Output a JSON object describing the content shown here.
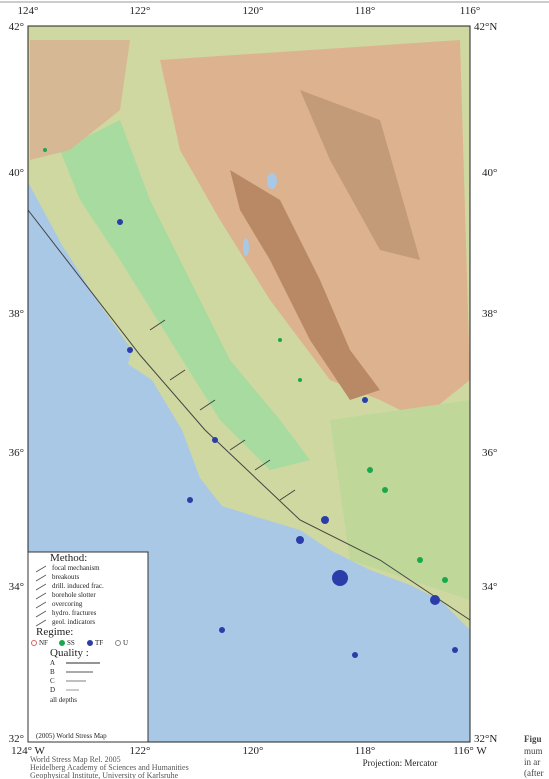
{
  "map": {
    "top_labels": [
      "124°",
      "122°",
      "120°",
      "118°",
      "116°"
    ],
    "left_labels": [
      "42°",
      "40°",
      "38°",
      "36°",
      "34°",
      "32°"
    ],
    "right_labels": [
      "42°N",
      "40°",
      "38°",
      "36°",
      "34°",
      "32°N"
    ],
    "bottom_labels": [
      "124° W",
      "122°",
      "120°",
      "118°",
      "116° W"
    ],
    "projection": "Projection: Mercator"
  },
  "legend": {
    "method_title": "Method:",
    "methods": [
      "focal mechanism",
      "breakouts",
      "drill. induced frac.",
      "borehole slotter",
      "overcoring",
      "hydro. fractures",
      "geol. indicators"
    ],
    "regime_title": "Regime:",
    "regimes": [
      "NF",
      "SS",
      "TF",
      "U"
    ],
    "quality_title": "Quality :",
    "qualities": [
      "A",
      "B",
      "C",
      "D"
    ],
    "depths": "all depths",
    "copyright": "(2005) World Stress Map"
  },
  "footer": [
    "World Stress Map Rel. 2005",
    "Heidelberg Academy of Sciences and Humanities",
    "Geophysical Institute, University of Karlsruhe"
  ],
  "side_text": [
    "Figu",
    "mum",
    "in ar",
    "(after"
  ]
}
